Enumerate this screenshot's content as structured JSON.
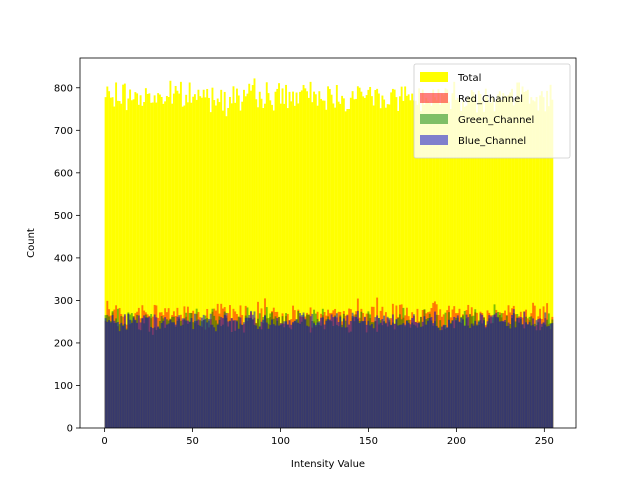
{
  "chart_data": {
    "type": "bar",
    "subtype": "histogram-overlay",
    "xlabel": "Intensity Value",
    "ylabel": "Count",
    "xlim": [
      -14,
      268
    ],
    "ylim": [
      0,
      870
    ],
    "xticks": [
      0,
      50,
      100,
      150,
      200,
      250
    ],
    "yticks": [
      0,
      100,
      200,
      300,
      400,
      500,
      600,
      700,
      800
    ],
    "grid": false,
    "legend_position": "top-right",
    "bins": 256,
    "series": [
      {
        "name": "Total",
        "color": "#ffff00",
        "opacity": 1.0,
        "mean": 768,
        "range": [
          730,
          830
        ]
      },
      {
        "name": "Red_Channel",
        "color": "#ff0000",
        "opacity": 0.5,
        "mean": 256,
        "range": [
          225,
          310
        ]
      },
      {
        "name": "Green_Channel",
        "color": "#008000",
        "opacity": 0.5,
        "mean": 256,
        "range": [
          212,
          295
        ]
      },
      {
        "name": "Blue_Channel",
        "color": "#0000cc",
        "opacity": 0.5,
        "mean": 256,
        "range": [
          220,
          285
        ]
      }
    ]
  }
}
